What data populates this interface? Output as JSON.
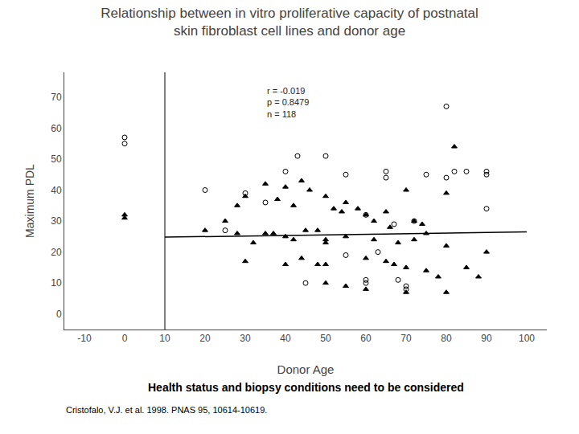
{
  "chart_data": {
    "type": "scatter",
    "title": "Relationship between in vitro proliferative capacity of postnatal\nskin fibroblast cell lines and donor age",
    "subtitle": "Health status and biopsy conditions need to be considered",
    "citation": "Cristofalo, V.J. et al. 1998. PNAS 95, 10614-10619.",
    "x_label": "Donor Age",
    "y_label": "Maximum PDL",
    "xlim": [
      -15,
      105
    ],
    "ylim": [
      -5,
      78
    ],
    "xticks": [
      -10,
      0,
      10,
      20,
      30,
      40,
      50,
      60,
      70,
      80,
      90,
      100
    ],
    "yticks": [
      0,
      10,
      20,
      30,
      40,
      50,
      60,
      70
    ],
    "grid": false,
    "annotations": [
      {
        "text": "r = -0.019\np = 0.8479\nn = 118",
        "x": 35,
        "y": 74
      }
    ],
    "vline": {
      "x": 10,
      "color": "black"
    },
    "series": [
      {
        "type": "scatter",
        "marker": "circle-open",
        "color": "black",
        "x": [
          0,
          0,
          20,
          30,
          40,
          43,
          50,
          55,
          60,
          60,
          60,
          63,
          65,
          65,
          67,
          70,
          70,
          72,
          75,
          80,
          80,
          82,
          85,
          90,
          90,
          90,
          45,
          55,
          68,
          25,
          35
        ],
        "values": [
          57,
          55,
          40,
          39,
          46,
          51,
          51,
          45,
          32,
          11,
          10,
          20,
          46,
          44,
          29,
          9,
          8,
          30,
          45,
          67,
          44,
          46,
          46,
          46,
          45,
          34,
          10,
          19,
          11,
          27,
          36
        ]
      },
      {
        "type": "scatter",
        "marker": "triangle-up",
        "color": "black",
        "x": [
          0,
          0,
          20,
          25,
          28,
          30,
          35,
          35,
          38,
          40,
          40,
          42,
          44,
          45,
          46,
          48,
          50,
          50,
          50,
          52,
          54,
          55,
          55,
          58,
          60,
          60,
          62,
          65,
          65,
          66,
          67,
          68,
          70,
          70,
          72,
          74,
          75,
          75,
          78,
          80,
          80,
          82,
          85,
          88,
          90,
          50,
          48,
          42,
          37,
          62,
          72,
          44,
          55,
          32,
          28,
          30,
          40,
          50,
          60,
          70,
          80
        ],
        "values": [
          32,
          31,
          27,
          30,
          26,
          38,
          42,
          26,
          37,
          41,
          25,
          35,
          43,
          27,
          40,
          27,
          38,
          24,
          23,
          34,
          33,
          36,
          25,
          34,
          32,
          18,
          30,
          33,
          17,
          28,
          16,
          23,
          40,
          15,
          30,
          29,
          26,
          14,
          12,
          39,
          22,
          54,
          15,
          12,
          20,
          16,
          16,
          24,
          26,
          24,
          24,
          18,
          9,
          23,
          35,
          17,
          16,
          10,
          8,
          7,
          7
        ]
      },
      {
        "type": "line",
        "color": "black",
        "x": [
          10,
          100
        ],
        "values": [
          24.8,
          26.5
        ]
      }
    ]
  }
}
